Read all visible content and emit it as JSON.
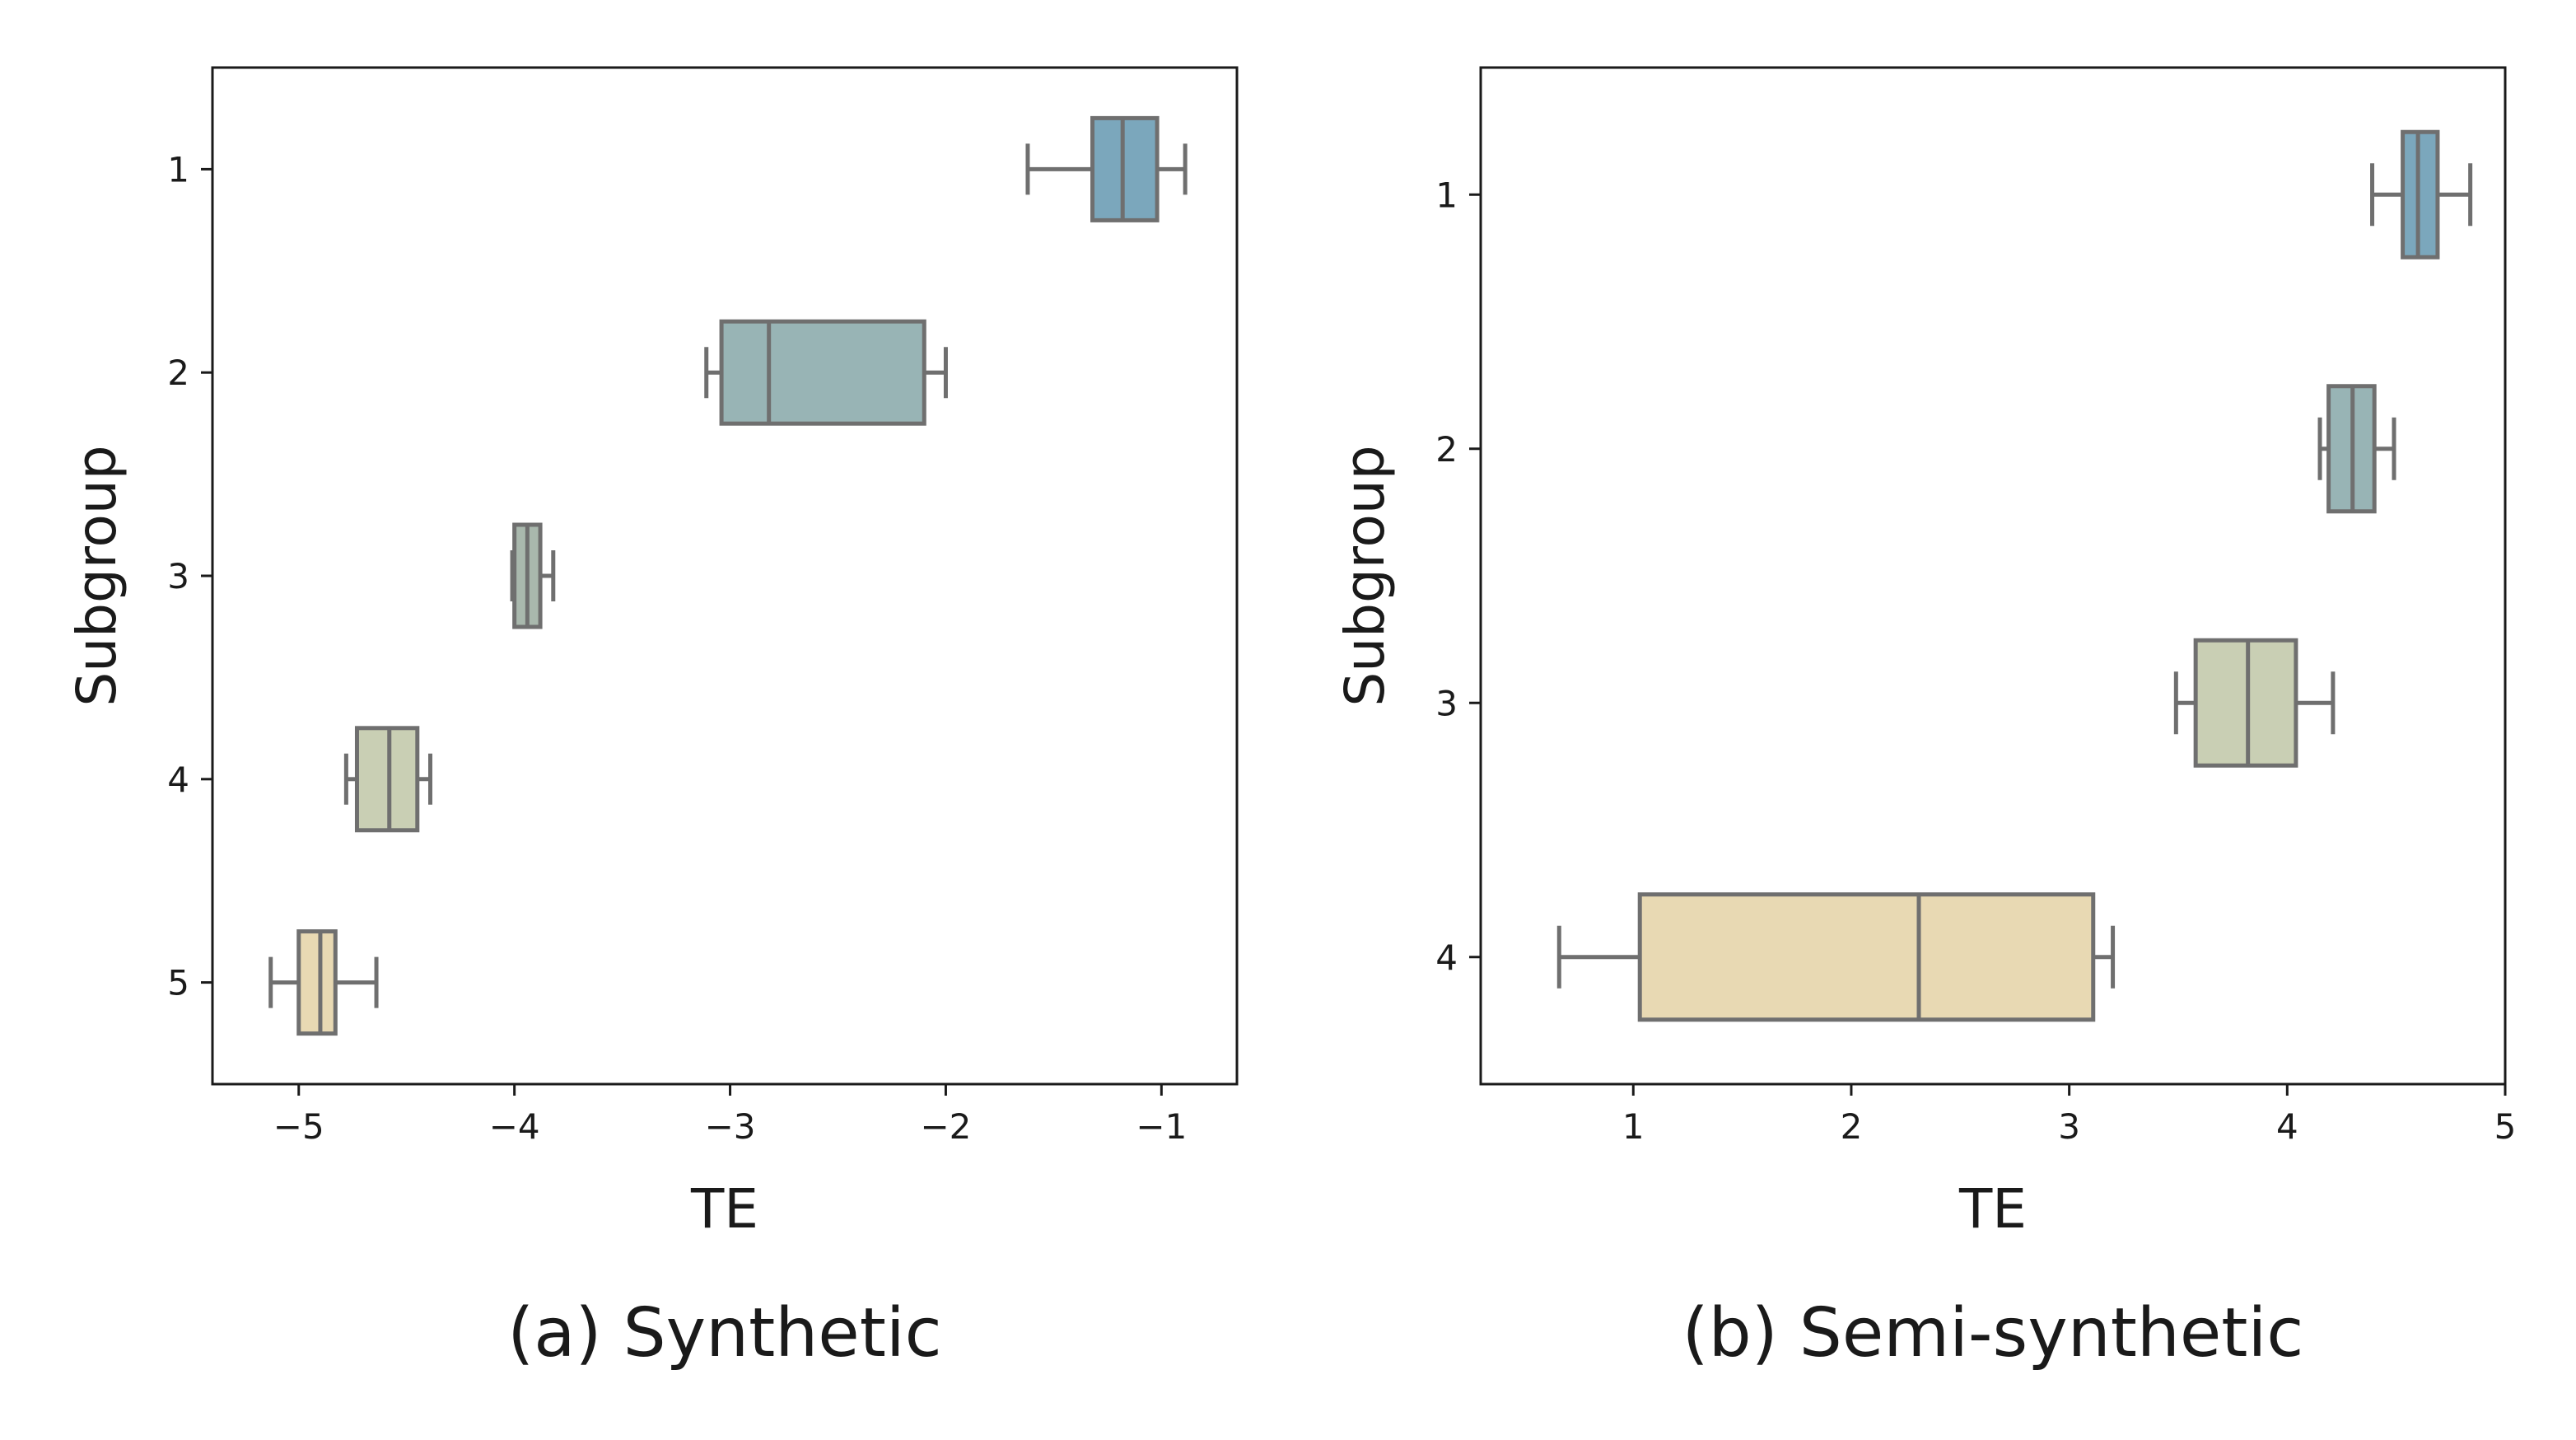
{
  "chart_data": [
    {
      "type": "boxplot",
      "orientation": "horizontal",
      "caption": "(a) Synthetic",
      "xlabel": "TE",
      "ylabel": "Subgroup",
      "xlim": [
        -5.4,
        -0.65
      ],
      "xticks": [
        -5,
        -4,
        -3,
        -2,
        -1
      ],
      "xtick_labels": [
        "−5",
        "−4",
        "−3",
        "−2",
        "−1"
      ],
      "grid": false,
      "categories": [
        "1",
        "2",
        "3",
        "4",
        "5"
      ],
      "boxes": [
        {
          "label": "1",
          "whisker_low": -1.62,
          "q1": -1.32,
          "median": -1.18,
          "q3": -1.02,
          "whisker_high": -0.89,
          "color": "#7ba7bc"
        },
        {
          "label": "2",
          "whisker_low": -3.11,
          "q1": -3.04,
          "median": -2.82,
          "q3": -2.1,
          "whisker_high": -2.0,
          "color": "#98b4b5"
        },
        {
          "label": "3",
          "whisker_low": -4.01,
          "q1": -4.0,
          "median": -3.94,
          "q3": -3.88,
          "whisker_high": -3.82,
          "color": "#a9b8ad"
        },
        {
          "label": "4",
          "whisker_low": -4.78,
          "q1": -4.73,
          "median": -4.58,
          "q3": -4.45,
          "whisker_high": -4.39,
          "color": "#c9cfb4"
        },
        {
          "label": "5",
          "whisker_low": -5.13,
          "q1": -5.0,
          "median": -4.9,
          "q3": -4.83,
          "whisker_high": -4.64,
          "color": "#e8d9b3"
        }
      ]
    },
    {
      "type": "boxplot",
      "orientation": "horizontal",
      "caption": "(b) Semi-synthetic",
      "xlabel": "TE",
      "ylabel": "Subgroup",
      "xlim": [
        0.3,
        5.0
      ],
      "xticks": [
        1,
        2,
        3,
        4,
        5
      ],
      "xtick_labels": [
        "1",
        "2",
        "3",
        "4",
        "5"
      ],
      "grid": false,
      "categories": [
        "1",
        "2",
        "3",
        "4"
      ],
      "boxes": [
        {
          "label": "1",
          "whisker_low": 4.39,
          "q1": 4.53,
          "median": 4.6,
          "q3": 4.69,
          "whisker_high": 4.84,
          "color": "#7ba7bc"
        },
        {
          "label": "2",
          "whisker_low": 4.15,
          "q1": 4.19,
          "median": 4.3,
          "q3": 4.4,
          "whisker_high": 4.49,
          "color": "#98b4b5"
        },
        {
          "label": "3",
          "whisker_low": 3.49,
          "q1": 3.58,
          "median": 3.82,
          "q3": 4.04,
          "whisker_high": 4.21,
          "color": "#c9cfb4"
        },
        {
          "label": "4",
          "whisker_low": 0.66,
          "q1": 1.03,
          "median": 2.31,
          "q3": 3.11,
          "whisker_high": 3.2,
          "color": "#e8d9b3"
        }
      ]
    }
  ]
}
